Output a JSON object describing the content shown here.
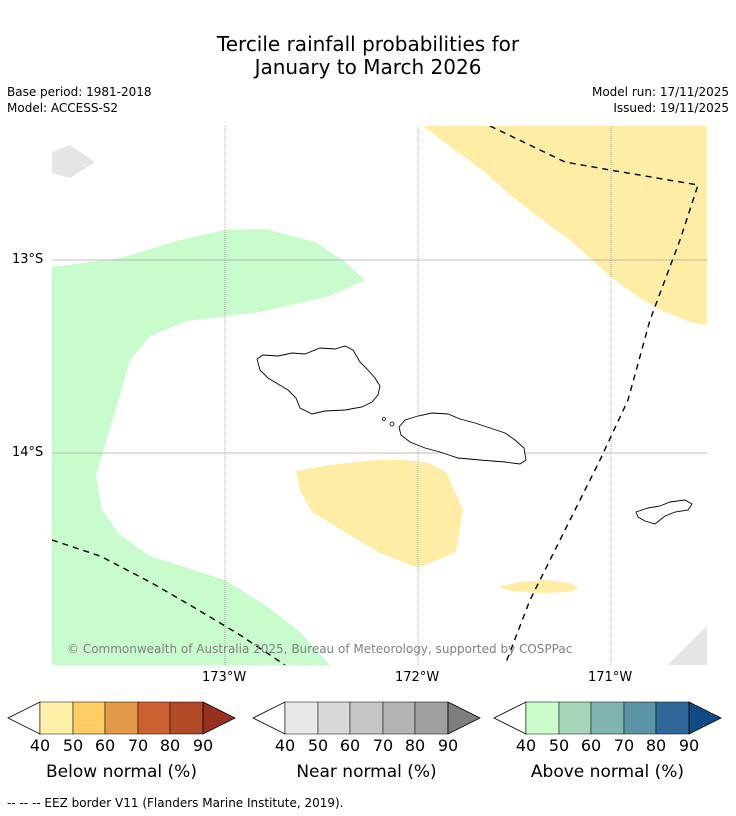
{
  "title_line1": "Tercile rainfall probabilities for",
  "title_line2": "January to March 2026",
  "base_period": "Base period: 1981-2018",
  "model": "Model: ACCESS-S2",
  "model_run": "Model run: 17/11/2025",
  "issued": "Issued: 19/11/2025",
  "copyright": "© Commonwealth of Australia 2025, Bureau of Meteorology, supported by COSPPac",
  "lat_labels": [
    "13°S",
    "14°S"
  ],
  "lon_labels": [
    "173°W",
    "172°W",
    "171°W"
  ],
  "legends": [
    {
      "title": "Below normal (%)",
      "colors": [
        "#fff0a8",
        "#fece65",
        "#e19a48",
        "#cb6030",
        "#b04a27",
        "#983020"
      ],
      "ticks": [
        "40",
        "50",
        "60",
        "70",
        "80",
        "90"
      ]
    },
    {
      "title": "Near normal (%)",
      "colors": [
        "#e8e8e8",
        "#d8d8d8",
        "#c6c6c6",
        "#b3b3b3",
        "#9f9f9f",
        "#7e7e7e"
      ],
      "ticks": [
        "40",
        "50",
        "60",
        "70",
        "80",
        "90"
      ]
    },
    {
      "title": "Above normal (%)",
      "colors": [
        "#cbfccc",
        "#a5d6b9",
        "#7fb4b0",
        "#5b94a4",
        "#2f6898",
        "#104b86"
      ],
      "ticks": [
        "40",
        "50",
        "60",
        "70",
        "80",
        "90"
      ]
    }
  ],
  "footnote": "--  --  -- EEZ border V11 (Flanders Marine Institute, 2019).",
  "colors": {
    "below40": "#ffeca5",
    "above40": "#c8fccc",
    "land_gray": "#e5e5e5",
    "grid": "#999999"
  }
}
